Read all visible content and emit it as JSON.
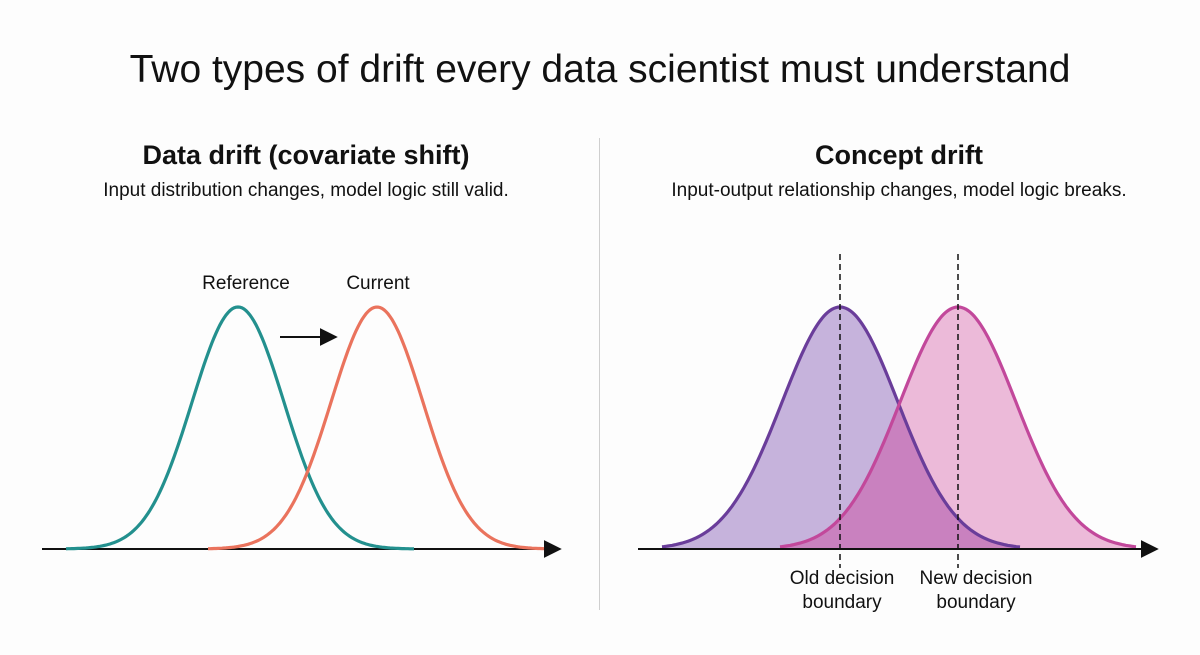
{
  "title": "Two types of drift every data scientist must understand",
  "left_panel": {
    "title": "Data drift (covariate shift)",
    "subtitle": "Input distribution changes, model logic still valid.",
    "label_reference": "Reference",
    "label_current": "Current"
  },
  "right_panel": {
    "title": "Concept drift",
    "subtitle": "Input-output relationship changes, model logic breaks.",
    "label_old_boundary": "Old decision\nboundary",
    "label_new_boundary": "New decision\nboundary"
  },
  "colors": {
    "reference": "#23908e",
    "current": "#ea735d",
    "old": "#6a3d9a",
    "old_fill": "#bca6d6",
    "new": "#c2489b",
    "new_fill": "#e7a9d0",
    "overlap_fill": "#c77cbd"
  }
}
